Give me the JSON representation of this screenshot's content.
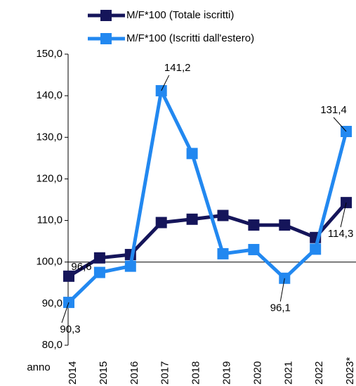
{
  "chart_data": {
    "type": "line",
    "x_label": "anno",
    "categories": [
      "2014",
      "2015",
      "2016",
      "2017",
      "2018",
      "2019",
      "2020",
      "2021",
      "2022",
      "2023*"
    ],
    "series": [
      {
        "name": "M/F*100 (Totale iscritti)",
        "color": "#15155a",
        "values": [
          96.6,
          101.0,
          101.8,
          109.5,
          110.3,
          111.2,
          108.9,
          108.9,
          105.9,
          114.3
        ],
        "value_labels": [
          "96,6",
          null,
          null,
          null,
          null,
          null,
          null,
          null,
          null,
          "114,3"
        ]
      },
      {
        "name": "M/F*100 (Iscritti dall'estero)",
        "color": "#2288f0",
        "values": [
          90.3,
          97.5,
          99.0,
          141.2,
          126.1,
          102.0,
          103.0,
          96.1,
          103.1,
          131.4
        ],
        "value_labels": [
          "90,3",
          null,
          null,
          "141,2",
          null,
          null,
          null,
          "96,1",
          null,
          "131,4"
        ]
      }
    ],
    "ylim": [
      80,
      150
    ],
    "yticks": [
      {
        "value": 80,
        "label": "80,0"
      },
      {
        "value": 90,
        "label": "90,0"
      },
      {
        "value": 100,
        "label": "100,0"
      },
      {
        "value": 110,
        "label": "110,0"
      },
      {
        "value": 120,
        "label": "120,0"
      },
      {
        "value": 130,
        "label": "130,0"
      },
      {
        "value": 140,
        "label": "140,0"
      },
      {
        "value": 150,
        "label": "150,0"
      }
    ],
    "x_axis_crosses": 100,
    "legend": "top"
  }
}
